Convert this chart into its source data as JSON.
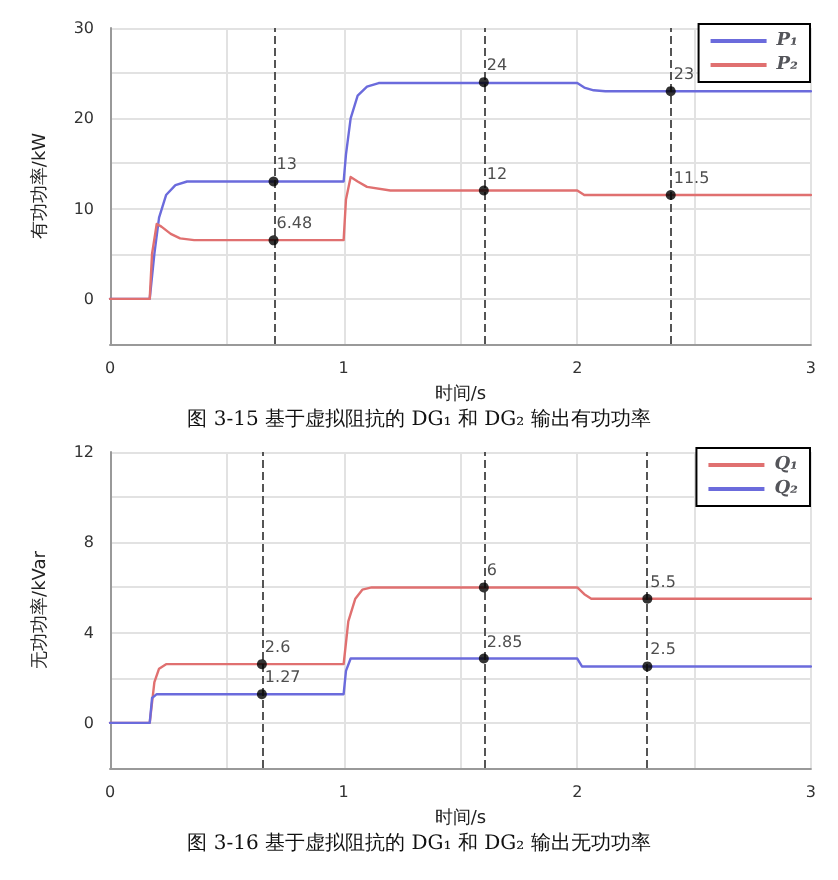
{
  "chart_data": [
    {
      "type": "line",
      "title": "图 3-15 基于虚拟阻抗的 DG₁ 和 DG₂ 输出有功功率",
      "xlabel": "时间/s",
      "ylabel": "有功功率/kW",
      "xlim": [
        0,
        3
      ],
      "ylim": [
        -5,
        30
      ],
      "xticks": [
        0,
        {
          "value": 0.5,
          "label": null
        },
        1,
        {
          "value": 1.5,
          "label": null
        },
        2,
        {
          "value": 2.5,
          "label": null
        },
        3
      ],
      "yticks": [
        {
          "value": -5,
          "label": null
        },
        0,
        {
          "value": 5,
          "label": null
        },
        10,
        {
          "value": 15,
          "label": null
        },
        20,
        {
          "value": 25,
          "label": null
        },
        30
      ],
      "grid": true,
      "legend": "top right",
      "marker": "none",
      "line_style": "solid",
      "series": [
        {
          "name": "P₁",
          "color": "#6b6bdc",
          "x": [
            0,
            0.17,
            0.19,
            0.21,
            0.24,
            0.28,
            0.33,
            1.0,
            1.01,
            1.03,
            1.06,
            1.1,
            1.15,
            2.0,
            2.03,
            2.07,
            2.12,
            3
          ],
          "values": [
            0,
            0,
            5,
            9,
            11.5,
            12.6,
            13,
            13,
            16,
            20,
            22.5,
            23.5,
            23.9,
            23.9,
            23.4,
            23.1,
            23,
            23
          ]
        },
        {
          "name": "P₂",
          "color": "#e07070",
          "x": [
            0,
            0.17,
            0.18,
            0.2,
            0.22,
            0.26,
            0.3,
            0.36,
            1.0,
            1.01,
            1.03,
            1.06,
            1.1,
            1.2,
            2.0,
            2.03,
            3
          ],
          "values": [
            0,
            0,
            5,
            8.3,
            8,
            7.2,
            6.7,
            6.5,
            6.5,
            11,
            13.5,
            13,
            12.4,
            12,
            12,
            11.5,
            11.5
          ]
        }
      ],
      "ref_lines": [
        {
          "axis": "x",
          "value": 0.7,
          "color": "#555555",
          "line_style": "dashed"
        },
        {
          "axis": "x",
          "value": 1.6,
          "color": "#555555",
          "line_style": "dashed"
        },
        {
          "axis": "x",
          "value": 2.4,
          "color": "#555555",
          "line_style": "dashed"
        }
      ],
      "annotations": [
        {
          "text": "13",
          "x": 0.7,
          "y": 13
        },
        {
          "text": "6.48",
          "x": 0.7,
          "y": 6.48
        },
        {
          "text": "24",
          "x": 1.6,
          "y": 24
        },
        {
          "text": "12",
          "x": 1.6,
          "y": 12
        },
        {
          "text": "23",
          "x": 2.4,
          "y": 23
        },
        {
          "text": "11.5",
          "x": 2.4,
          "y": 11.5
        }
      ]
    },
    {
      "type": "line",
      "title": "图 3-16 基于虚拟阻抗的 DG₁ 和 DG₂ 输出无功功率",
      "xlabel": "时间/s",
      "ylabel": "无功功率/kVar",
      "xlim": [
        0,
        3
      ],
      "ylim": [
        -2,
        12
      ],
      "xticks": [
        0,
        {
          "value": 0.5,
          "label": null
        },
        1,
        {
          "value": 1.5,
          "label": null
        },
        2,
        {
          "value": 2.5,
          "label": null
        },
        3
      ],
      "yticks": [
        {
          "value": -2,
          "label": null
        },
        0,
        {
          "value": 2,
          "label": null
        },
        4,
        {
          "value": 6,
          "label": null
        },
        8,
        {
          "value": 10,
          "label": null
        },
        12
      ],
      "grid": true,
      "legend": "top right",
      "marker": "none",
      "line_style": "solid",
      "series": [
        {
          "name": "Q₁",
          "color": "#e07070",
          "x": [
            0,
            0.17,
            0.19,
            0.21,
            0.24,
            1.0,
            1.02,
            1.05,
            1.08,
            1.12,
            2.0,
            2.03,
            2.06,
            3
          ],
          "values": [
            0,
            0,
            1.8,
            2.4,
            2.6,
            2.6,
            4.5,
            5.5,
            5.9,
            6,
            6,
            5.7,
            5.5,
            5.5
          ]
        },
        {
          "name": "Q₂",
          "color": "#6b6bdc",
          "x": [
            0,
            0.17,
            0.18,
            0.2,
            1.0,
            1.01,
            1.03,
            2.0,
            2.02,
            3
          ],
          "values": [
            0,
            0,
            1.1,
            1.27,
            1.27,
            2.3,
            2.85,
            2.85,
            2.5,
            2.5
          ]
        }
      ],
      "ref_lines": [
        {
          "axis": "x",
          "value": 0.65,
          "color": "#555555",
          "line_style": "dashed"
        },
        {
          "axis": "x",
          "value": 1.6,
          "color": "#555555",
          "line_style": "dashed"
        },
        {
          "axis": "x",
          "value": 2.3,
          "color": "#555555",
          "line_style": "dashed"
        }
      ],
      "annotations": [
        {
          "text": "2.6",
          "x": 0.65,
          "y": 2.6
        },
        {
          "text": "1.27",
          "x": 0.65,
          "y": 1.27
        },
        {
          "text": "6",
          "x": 1.6,
          "y": 6
        },
        {
          "text": "2.85",
          "x": 1.6,
          "y": 2.85
        },
        {
          "text": "5.5",
          "x": 2.3,
          "y": 5.5
        },
        {
          "text": "2.5",
          "x": 2.3,
          "y": 2.5
        }
      ]
    }
  ]
}
